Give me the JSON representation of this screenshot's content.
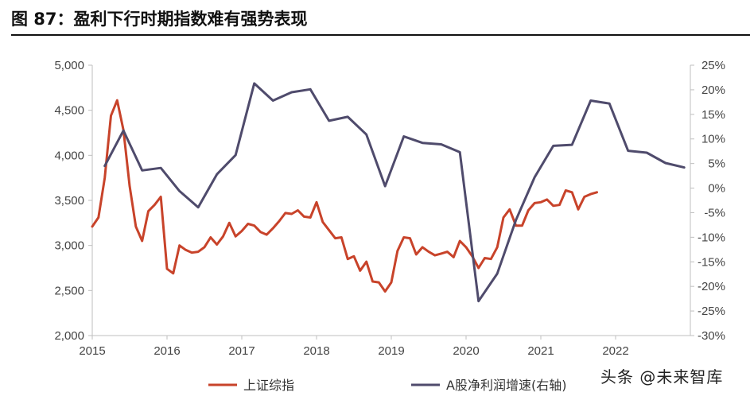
{
  "title": "图 87：盈利下行时期指数难有强势表现",
  "watermark": "头条 @未来智库",
  "chart_data": {
    "type": "line",
    "title": "图 87：盈利下行时期指数难有强势表现",
    "x_ticks": [
      "2015",
      "2016",
      "2017",
      "2018",
      "2019",
      "2020",
      "2021",
      "2022"
    ],
    "xlim": [
      2015,
      2023.0
    ],
    "y_left": {
      "lim": [
        2000,
        5000
      ],
      "ticks": [
        "2,000",
        "2,500",
        "3,000",
        "3,500",
        "4,000",
        "4,500",
        "5,000"
      ],
      "tick_values": [
        2000,
        2500,
        3000,
        3500,
        4000,
        4500,
        5000
      ]
    },
    "y_right": {
      "lim": [
        -30,
        25
      ],
      "ticks": [
        "-30%",
        "-25%",
        "-20%",
        "-15%",
        "-10%",
        "-5%",
        "0%",
        "5%",
        "10%",
        "15%",
        "20%",
        "25%"
      ],
      "tick_values": [
        -30,
        -25,
        -20,
        -15,
        -10,
        -5,
        0,
        5,
        10,
        15,
        20,
        25
      ]
    },
    "grid": false,
    "legend_position": "bottom",
    "series": [
      {
        "name": "上证综指",
        "axis": "left",
        "color": "#C8432A",
        "x": [
          "2015-01",
          "2015-02",
          "2015-03",
          "2015-04",
          "2015-05",
          "2015-06",
          "2015-07",
          "2015-08",
          "2015-09",
          "2015-10",
          "2015-11",
          "2015-12",
          "2016-01",
          "2016-02",
          "2016-03",
          "2016-04",
          "2016-05",
          "2016-06",
          "2016-07",
          "2016-08",
          "2016-09",
          "2016-10",
          "2016-11",
          "2016-12",
          "2017-01",
          "2017-02",
          "2017-03",
          "2017-04",
          "2017-05",
          "2017-06",
          "2017-07",
          "2017-08",
          "2017-09",
          "2017-10",
          "2017-11",
          "2017-12",
          "2018-01",
          "2018-02",
          "2018-03",
          "2018-04",
          "2018-05",
          "2018-06",
          "2018-07",
          "2018-08",
          "2018-09",
          "2018-10",
          "2018-11",
          "2018-12",
          "2019-01",
          "2019-02",
          "2019-03",
          "2019-04",
          "2019-05",
          "2019-06",
          "2019-07",
          "2019-08",
          "2019-09",
          "2019-10",
          "2019-11",
          "2019-12",
          "2020-01",
          "2020-02",
          "2020-03",
          "2020-04",
          "2020-05",
          "2020-06",
          "2020-07",
          "2020-08",
          "2020-09",
          "2020-10",
          "2020-11",
          "2020-12",
          "2021-01",
          "2021-02",
          "2021-03",
          "2021-04",
          "2021-05",
          "2021-06",
          "2021-07",
          "2021-08",
          "2021-09",
          "2021-10"
        ],
        "values": [
          3210,
          3310,
          3750,
          4440,
          4610,
          4280,
          3660,
          3210,
          3050,
          3380,
          3450,
          3540,
          2740,
          2690,
          3000,
          2950,
          2920,
          2930,
          2980,
          3090,
          3010,
          3100,
          3250,
          3100,
          3160,
          3240,
          3220,
          3150,
          3120,
          3190,
          3270,
          3360,
          3350,
          3390,
          3320,
          3310,
          3480,
          3260,
          3170,
          3080,
          3090,
          2850,
          2880,
          2720,
          2820,
          2600,
          2590,
          2490,
          2590,
          2940,
          3090,
          3080,
          2900,
          2980,
          2930,
          2890,
          2910,
          2930,
          2870,
          3050,
          2980,
          2880,
          2750,
          2860,
          2850,
          2980,
          3310,
          3400,
          3220,
          3220,
          3390,
          3470,
          3480,
          3510,
          3440,
          3450,
          3610,
          3590,
          3400,
          3540,
          3570,
          3590
        ]
      },
      {
        "name": "A股净利润增速(右轴)",
        "axis": "right",
        "color": "#4F4B6C",
        "x": [
          "2015-03",
          "2015-06",
          "2015-09",
          "2015-12",
          "2016-03",
          "2016-06",
          "2016-09",
          "2016-12",
          "2017-03",
          "2017-06",
          "2017-09",
          "2017-12",
          "2018-03",
          "2018-06",
          "2018-09",
          "2018-12",
          "2019-03",
          "2019-06",
          "2019-09",
          "2019-12",
          "2020-03",
          "2020-06",
          "2020-09",
          "2020-12",
          "2021-03",
          "2021-06",
          "2021-09",
          "2021-12",
          "2022-03",
          "2022-06",
          "2022-09",
          "2022-12"
        ],
        "values": [
          4.5,
          11.7,
          3.6,
          4.1,
          -0.6,
          -3.9,
          2.8,
          6.7,
          21.3,
          17.8,
          19.5,
          20.1,
          13.7,
          14.5,
          10.9,
          0.4,
          10.5,
          9.2,
          8.9,
          7.3,
          -23.0,
          -17.4,
          -6.5,
          2.2,
          8.6,
          8.8,
          17.8,
          17.2,
          7.6,
          7.2,
          5.1,
          4.2
        ]
      }
    ]
  }
}
